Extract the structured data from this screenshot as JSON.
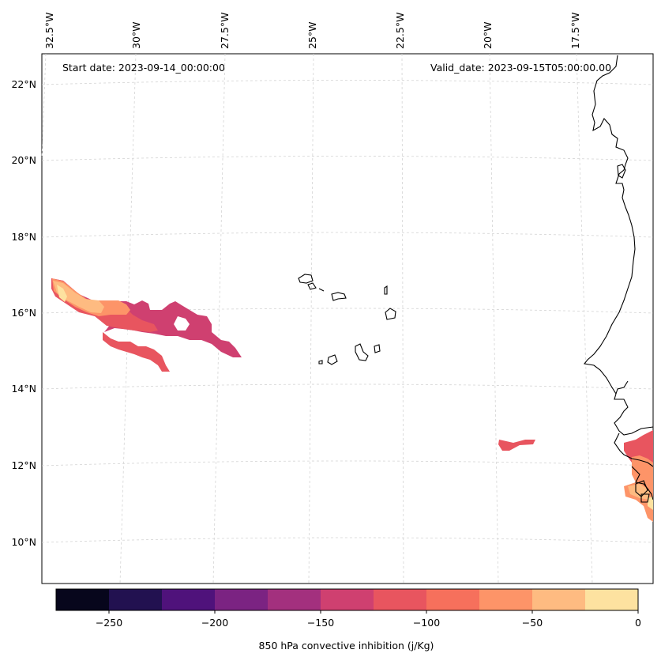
{
  "header": {
    "start_date": "Start date: 2023-09-14_00:00:00",
    "valid_date": "Valid_date: 2023-09-15T05:00:00.00"
  },
  "longitude_labels": [
    "32.5°W",
    "30°W",
    "27.5°W",
    "25°W",
    "22.5°W",
    "20°W",
    "17.5°W"
  ],
  "latitude_labels": [
    "22°N",
    "20°N",
    "18°N",
    "16°N",
    "14°N",
    "12°N",
    "10°N"
  ],
  "colorbar": {
    "label": "850 hPa convective inhibition (j/Kg)",
    "ticks": [
      "−250",
      "−200",
      "−150",
      "−100",
      "−50",
      "0"
    ],
    "levels": [
      -275,
      -250,
      -225,
      -200,
      -175,
      -150,
      -125,
      -100,
      -75,
      -50,
      -25,
      0
    ],
    "colors": [
      "#07061c",
      "#221150",
      "#4f127b",
      "#7b2382",
      "#a3307e",
      "#cf4070",
      "#e8555f",
      "#f6705c",
      "#fd9468",
      "#febb81",
      "#fde2a0"
    ]
  },
  "legend_colors": {
    "coastline": "#000000",
    "gridline": "#d0d0d0"
  }
}
